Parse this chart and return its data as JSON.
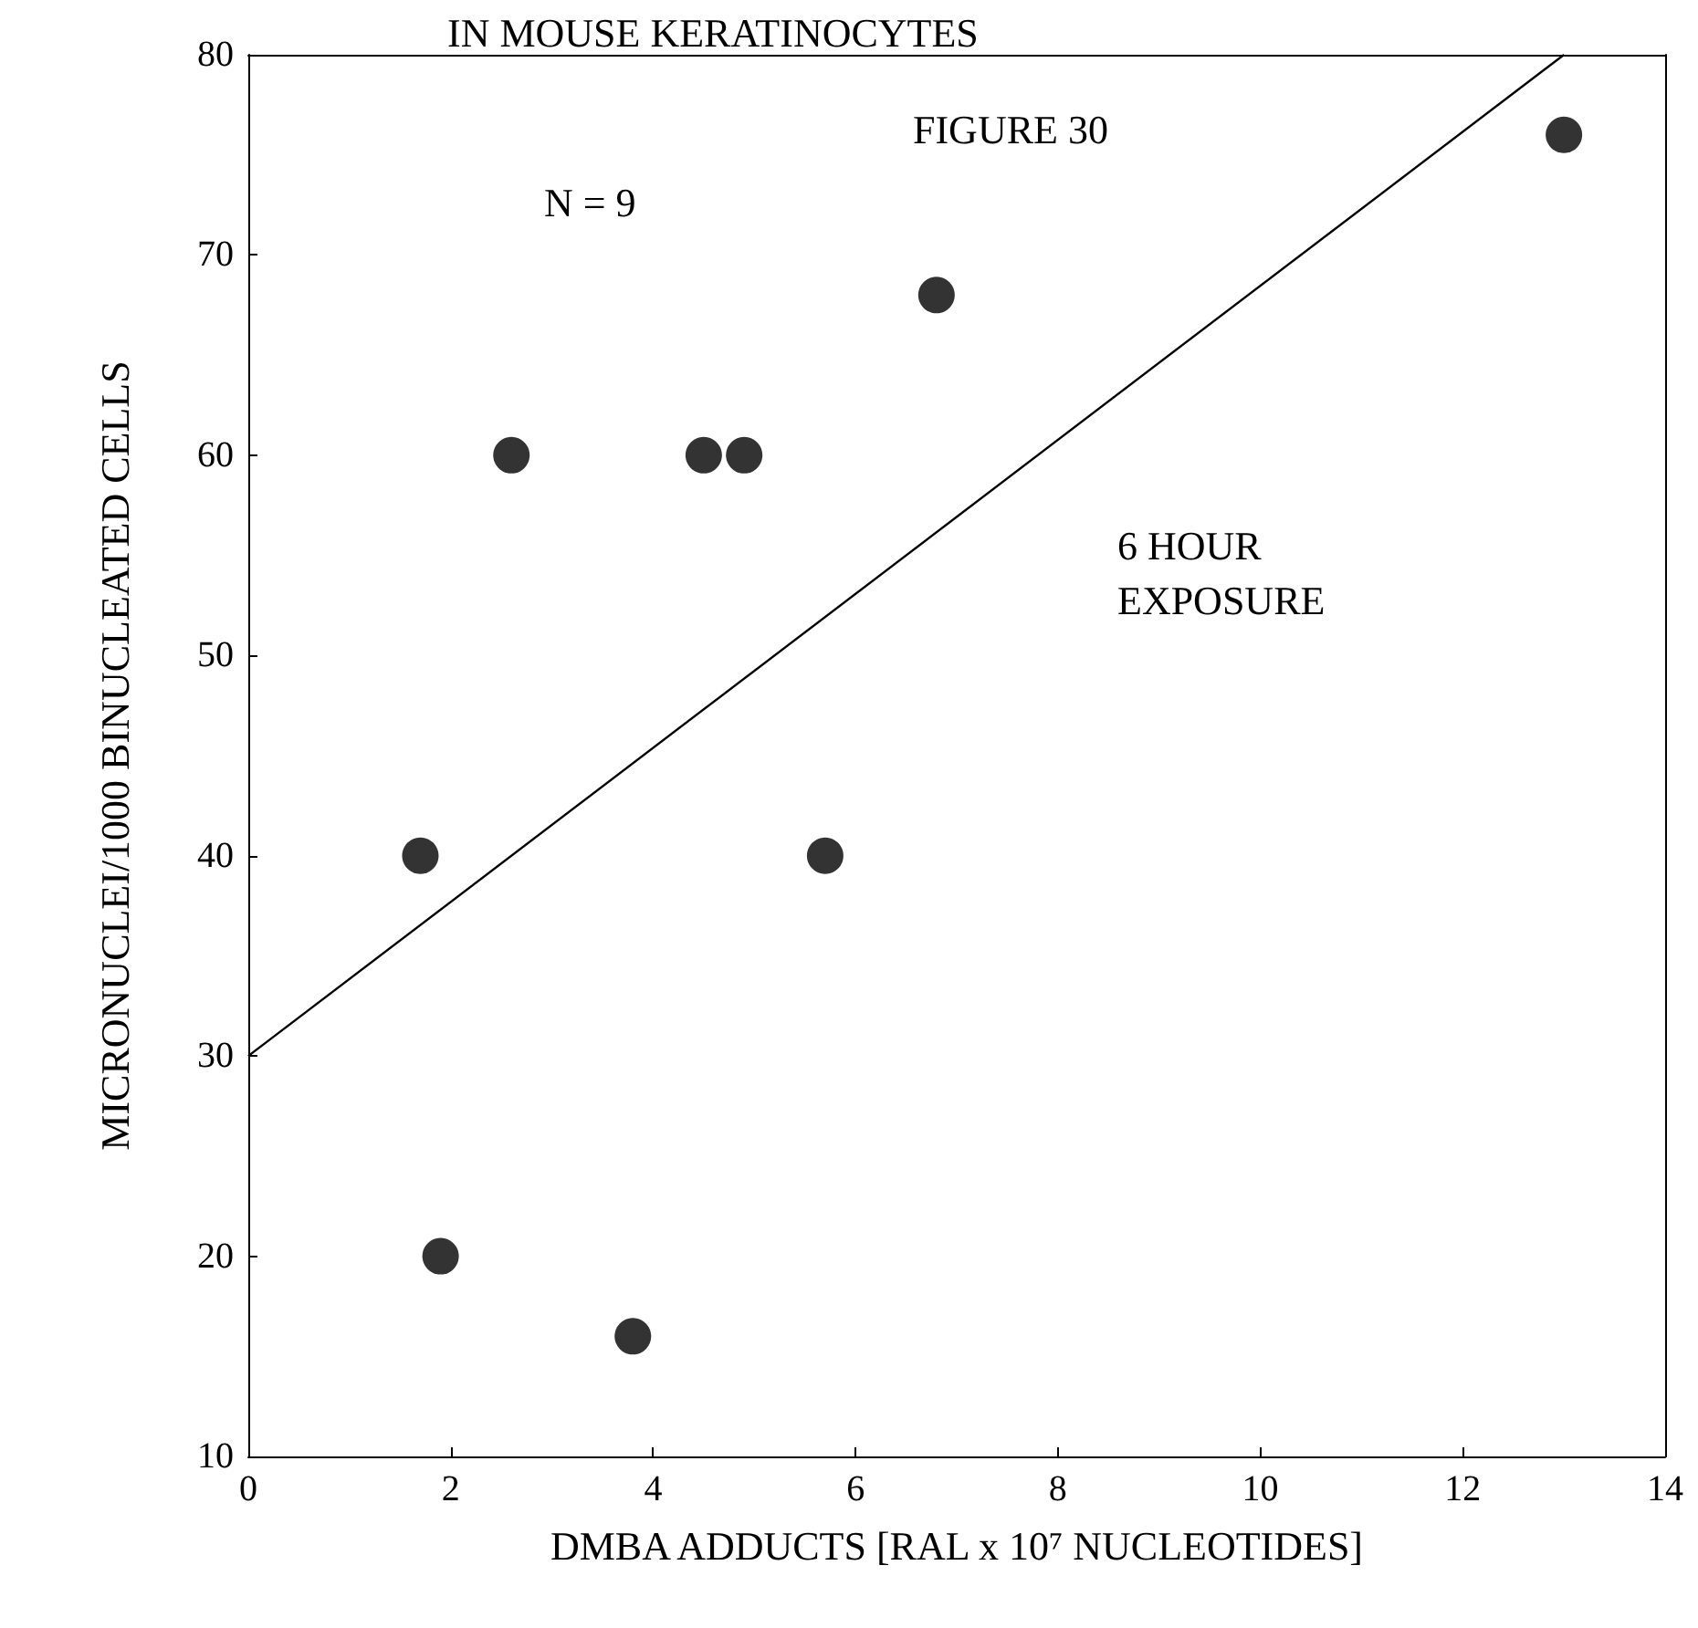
{
  "chart_data": {
    "type": "scatter",
    "title": "IN MOUSE KERATINOCYTES",
    "xlabel": "DMBA ADDUCTS [RAL x 10⁷ NUCLEOTIDES]",
    "ylabel": "MICRONUCLEI/1000 BINUCLEATED CELLS",
    "annotations": [
      "FIGURE 30",
      "N = 9",
      "6 HOUR\nEXPOSURE"
    ],
    "series": [
      {
        "color": "#000000",
        "x": [
          1.7,
          1.9,
          2.6,
          3.8,
          4.5,
          4.9,
          5.7,
          6.8,
          13
        ],
        "values": [
          40,
          20,
          60,
          16,
          60,
          60,
          40,
          68,
          76
        ]
      },
      {
        "type": "line",
        "marker": "none",
        "color": "#000000",
        "x": [
          0,
          13
        ],
        "values": [
          30,
          80
        ]
      }
    ],
    "marker": "circle",
    "xlim": [
      0,
      14
    ],
    "xticks": [
      0,
      2,
      4,
      6,
      8,
      10,
      12,
      14
    ],
    "ylim": [
      10,
      80
    ],
    "yticks": [
      10,
      20,
      30,
      40,
      50,
      60,
      70,
      80
    ],
    "grid": false
  }
}
